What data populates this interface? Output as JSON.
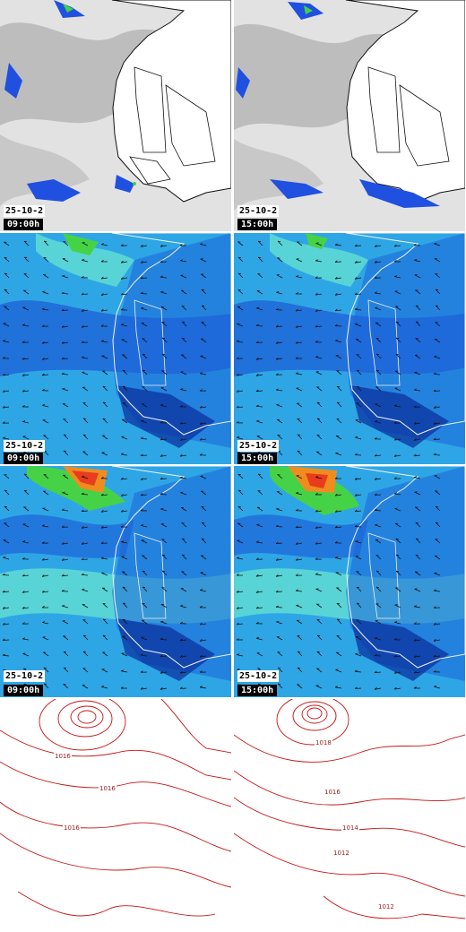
{
  "rows": [
    {
      "layer": "satellite infrared",
      "panels": [
        {
          "date": "25-10-2",
          "time": "09:00h"
        },
        {
          "date": "25-10-2",
          "time": "15:00h"
        }
      ]
    },
    {
      "layer": "wind",
      "panels": [
        {
          "date": "25-10-2",
          "time": "09:00h"
        },
        {
          "date": "25-10-2",
          "time": "15:00h"
        }
      ]
    },
    {
      "layer": "gust",
      "panels": [
        {
          "date": "25-10-2",
          "time": "09:00h"
        },
        {
          "date": "25-10-2",
          "time": "15:00h"
        }
      ]
    },
    {
      "layer": "pressure",
      "panels": [
        {
          "isobars": [
            "1016",
            "1016",
            "1016"
          ]
        },
        {
          "isobars": [
            "1018",
            "1016",
            "1014",
            "1012",
            "1012"
          ]
        }
      ]
    }
  ],
  "colors": {
    "cloud": "#bdbdbd",
    "land_sat": "#ffffff",
    "wind_low": "#1e64d8",
    "wind_mid": "#2ea6e6",
    "wind_high": "#64e0d2",
    "gust_peak": "#f08c1e",
    "gust_green": "#46d246",
    "isobar": "#c81414"
  }
}
